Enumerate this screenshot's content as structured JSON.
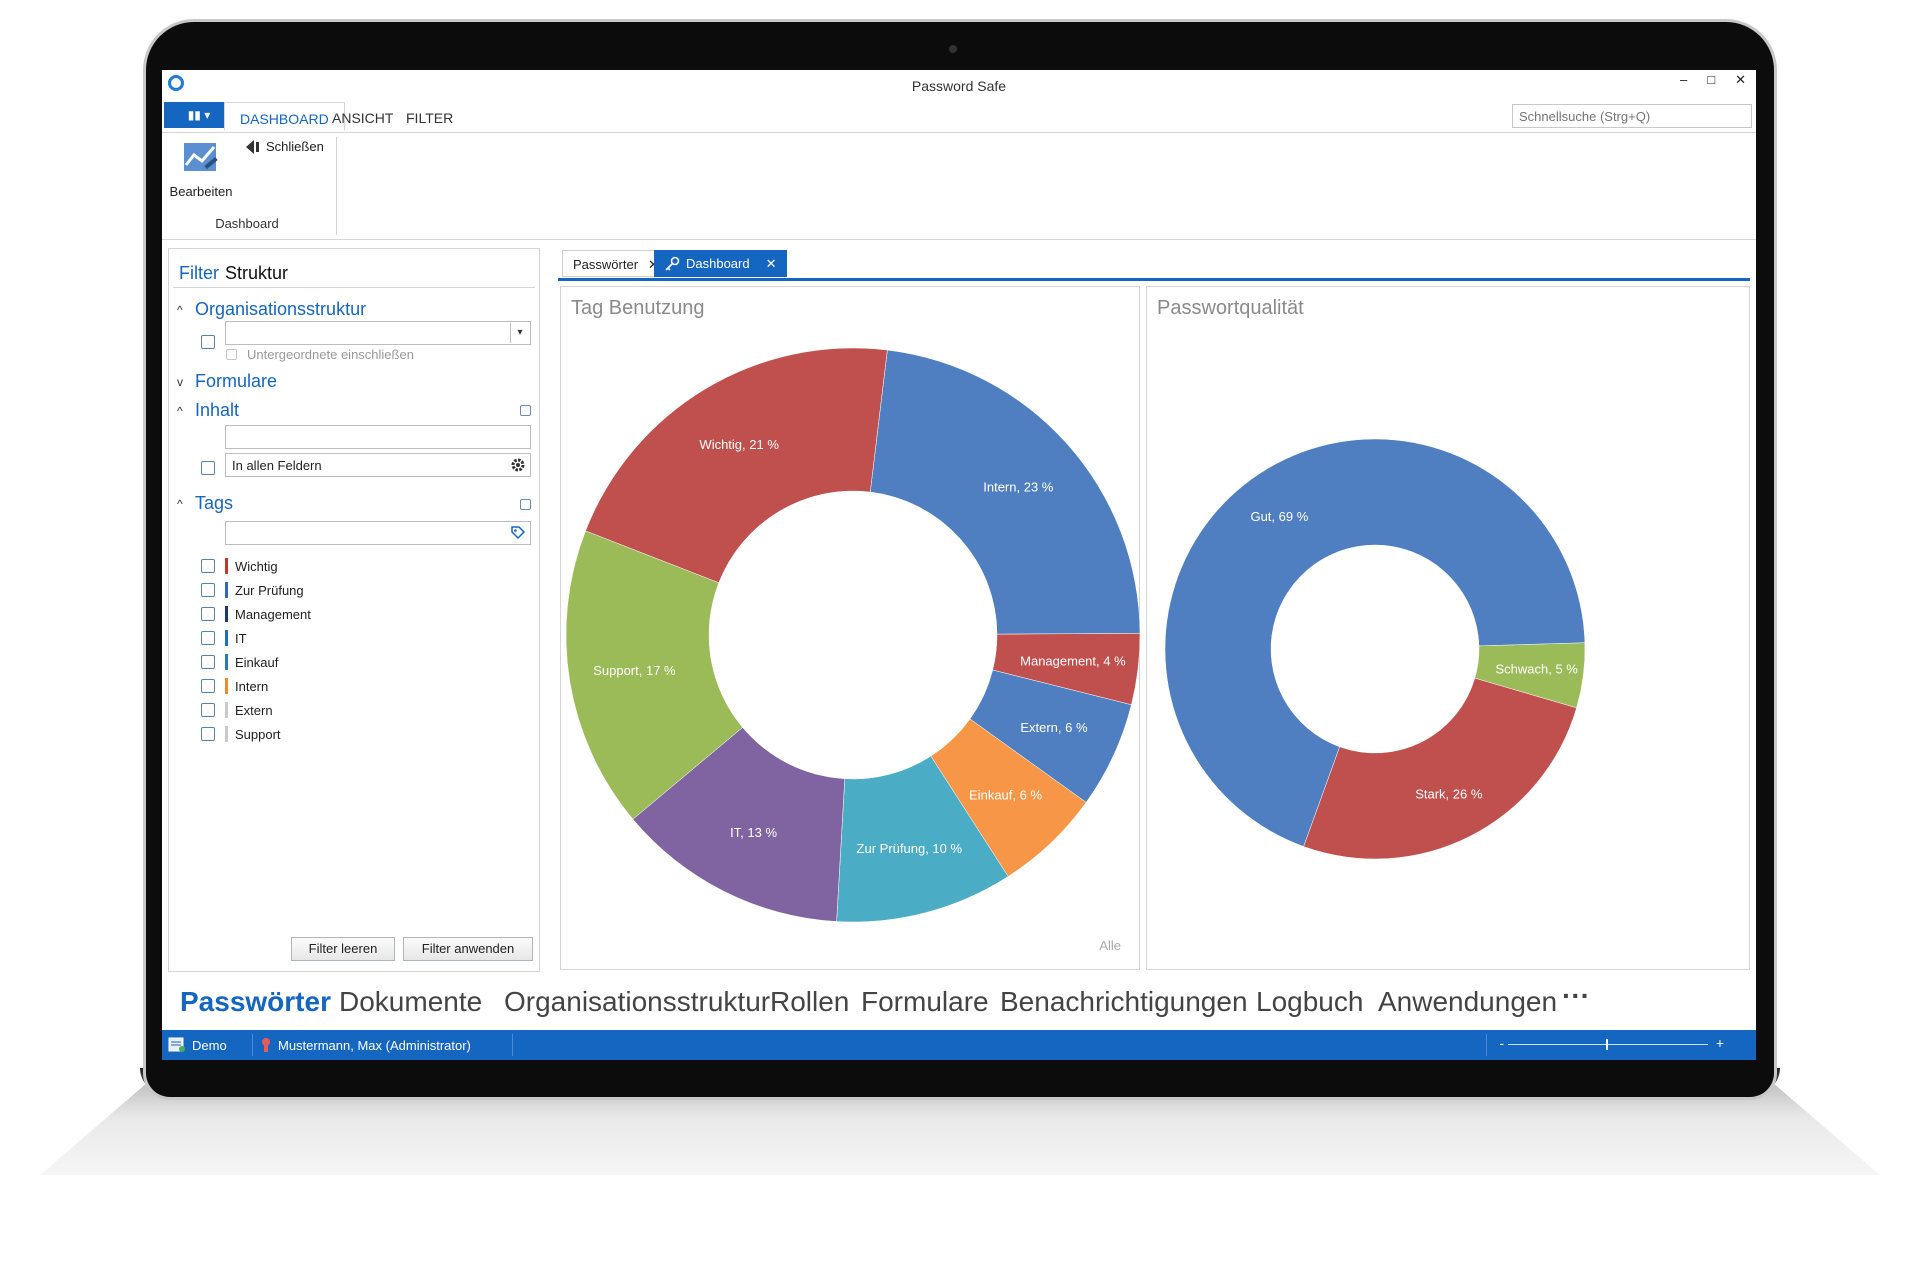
{
  "window": {
    "title": "Password Safe",
    "controls": [
      "–",
      "□",
      "✕"
    ]
  },
  "ribbon": {
    "menu_button": "▮▮ ▾",
    "tabs": [
      {
        "label": "DASHBOARD",
        "active": true
      },
      {
        "label": "ANSICHT",
        "active": false
      },
      {
        "label": "FILTER",
        "active": false
      }
    ],
    "quick_search_placeholder": "Schnellsuche (Strg+Q)",
    "edit_label": "Bearbeiten",
    "close_label": "Schließen",
    "group_label": "Dashboard"
  },
  "filter_panel": {
    "tab_filter": "Filter",
    "tab_structure": "Struktur",
    "org_section": "Organisationsstruktur",
    "include_sub": "Untergeordnete einschließen",
    "forms_section": "Formulare",
    "content_section": "Inhalt",
    "content_scope": "In allen Feldern",
    "tags_section": "Tags",
    "tags": [
      {
        "label": "Wichtig",
        "color": "#c0392b"
      },
      {
        "label": "Zur Prüfung",
        "color": "#2d6db5"
      },
      {
        "label": "Management",
        "color": "#1d3a66"
      },
      {
        "label": "IT",
        "color": "#1e6fb8"
      },
      {
        "label": "Einkauf",
        "color": "#2a7ab8"
      },
      {
        "label": "Intern",
        "color": "#f0882c"
      },
      {
        "label": "Extern",
        "color": "#c9c9c9"
      },
      {
        "label": "Support",
        "color": "#c9c9c9"
      }
    ],
    "clear_button": "Filter leeren",
    "apply_button": "Filter anwenden"
  },
  "doc_tabs": [
    {
      "label": "Passwörter",
      "active": false
    },
    {
      "label": "Dashboard",
      "active": true
    }
  ],
  "chart_data": [
    {
      "type": "pie",
      "title": "Tag Benutzung",
      "footer": "Alle",
      "slices": [
        {
          "label": "Intern, 23 %",
          "value": 23,
          "color": "#4f7fc0"
        },
        {
          "label": "Management, 4 %",
          "value": 4,
          "color": "#c0504d"
        },
        {
          "label": "Extern, 6 %",
          "value": 6,
          "color": "#4f7fc0"
        },
        {
          "label": "Einkauf, 6 %",
          "value": 6,
          "color": "#f79646"
        },
        {
          "label": "Zur Prüfung, 10 %",
          "value": 10,
          "color": "#4bacc6"
        },
        {
          "label": "IT, 13 %",
          "value": 13,
          "color": "#8064a2"
        },
        {
          "label": "Support, 17 %",
          "value": 17,
          "color": "#9bbb59"
        },
        {
          "label": "Wichtig, 21 %",
          "value": 21,
          "color": "#c0504d"
        }
      ]
    },
    {
      "type": "pie",
      "title": "Passwortqualität",
      "slices": [
        {
          "label": "Schwach, 5 %",
          "value": 5,
          "color": "#9bbb59"
        },
        {
          "label": "Stark, 26 %",
          "value": 26,
          "color": "#c0504d"
        },
        {
          "label": "Gut, 69 %",
          "value": 69,
          "color": "#4f7fc0"
        }
      ]
    }
  ],
  "bottom_nav": [
    {
      "label": "Passwörter",
      "active": true
    },
    {
      "label": "Dokumente"
    },
    {
      "label": "Organisationsstruktur"
    },
    {
      "label": "Rollen"
    },
    {
      "label": "Formulare"
    },
    {
      "label": "Benachrichtigungen"
    },
    {
      "label": "Logbuch"
    },
    {
      "label": "Anwendungen"
    },
    {
      "label": "···"
    }
  ],
  "statusbar": {
    "database": "Demo",
    "user": "Mustermann, Max (Administrator)",
    "zoom_minus": "-",
    "zoom_plus": "+"
  }
}
